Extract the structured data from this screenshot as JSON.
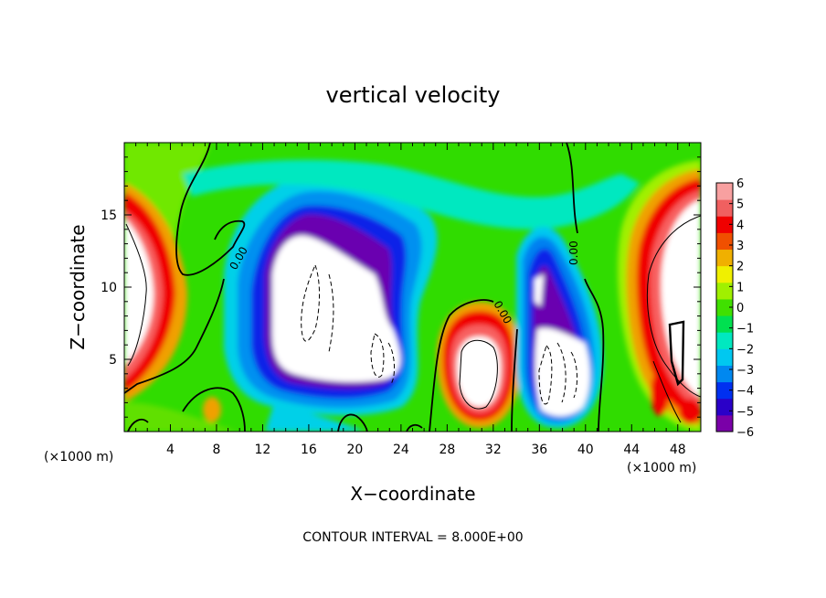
{
  "chart_data": {
    "type": "heatmap",
    "title": "vertical velocity",
    "xlabel": "X−coordinate",
    "ylabel": "Z−coordinate",
    "x_unit_left": "(×1000 m)",
    "x_unit_right": "(×1000 m)",
    "footer": "CONTOUR INTERVAL = 8.000E+00",
    "xlim": [
      0,
      50
    ],
    "ylim": [
      0,
      20
    ],
    "x_ticks": [
      4,
      8,
      12,
      16,
      20,
      24,
      28,
      32,
      36,
      40,
      44,
      48
    ],
    "x_tick_labels": [
      "4",
      "8",
      "12",
      "16",
      "20",
      "24",
      "28",
      "32",
      "36",
      "40",
      "44",
      "48"
    ],
    "y_ticks": [
      5,
      10,
      15
    ],
    "y_tick_labels": [
      "5",
      "10",
      "15"
    ],
    "colorbar": {
      "min": -6,
      "max": 6,
      "ticks": [
        6,
        5,
        4,
        3,
        2,
        1,
        0,
        -1,
        -2,
        -3,
        -4,
        -5,
        -6
      ],
      "tick_labels": [
        "6",
        "5",
        "4",
        "3",
        "2",
        "1",
        "0",
        "−1",
        "−2",
        "−3",
        "−4",
        "−5",
        "−6"
      ],
      "colors": [
        "#7a00a8",
        "#2a00c8",
        "#0030f0",
        "#0088f0",
        "#00c8f0",
        "#00e8c0",
        "#00e050",
        "#40e000",
        "#a0f000",
        "#f0f000",
        "#f0b000",
        "#f05000",
        "#f00000",
        "#f06060",
        "#f8a0a0"
      ]
    },
    "contour_labels": [
      "0.00",
      "0.00",
      "0.00"
    ],
    "features": [
      {
        "kind": "updraft",
        "x": 1.5,
        "z": 9,
        "peak": 8
      },
      {
        "kind": "downdraft",
        "x": 18,
        "z": 9,
        "peak": -9
      },
      {
        "kind": "updraft",
        "x": 31,
        "z": 4.2,
        "peak": 8
      },
      {
        "kind": "downdraft",
        "x": 37.5,
        "z": 5,
        "peak": -9
      },
      {
        "kind": "updraft",
        "x": 47,
        "z": 10,
        "peak": 8
      }
    ]
  }
}
